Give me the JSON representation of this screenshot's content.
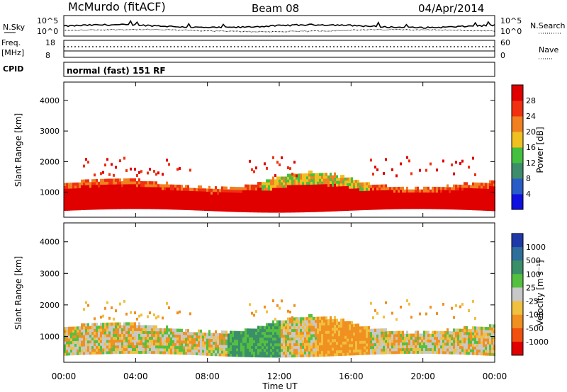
{
  "header": {
    "station": "McMurdo (fitACF)",
    "beam": "Beam 08",
    "date": "04/Apr/2014"
  },
  "noise_panel": {
    "left_label": "N.Sky",
    "right_label": "N.Search",
    "left_ticks": [
      "10^5",
      "10^0"
    ],
    "right_ticks": [
      "10^5",
      "10^0"
    ]
  },
  "freq_panel": {
    "left_label_1": "Freq.",
    "left_label_2": "[MHz]",
    "left_ticks": [
      "18",
      "8"
    ],
    "right_label": "Nave",
    "right_ticks": [
      "60",
      "0"
    ]
  },
  "cpid": {
    "label": "CPID",
    "text": "normal (fast) 151 RF"
  },
  "x_axis": {
    "title": "Time UT",
    "ticks": [
      "00:00",
      "04:00",
      "08:00",
      "12:00",
      "16:00",
      "20:00",
      "00:00"
    ]
  },
  "y_axis": {
    "title": "Slant Range [km]",
    "ticks": [
      "1000",
      "2000",
      "3000",
      "4000"
    ]
  },
  "power_scale": {
    "title": "Power [dB]",
    "ticks": [
      "4",
      "8",
      "12",
      "16",
      "20",
      "24",
      "28"
    ],
    "colors": [
      "#1010e0",
      "#2a5cc8",
      "#3d8c6c",
      "#44c040",
      "#f0c020",
      "#f08020",
      "#f03010",
      "#e00000"
    ]
  },
  "velocity_scale": {
    "title": "Velocity [m s⁻¹]",
    "ticks": [
      "1000",
      "500",
      "100",
      "25",
      "-25",
      "-100",
      "-500",
      "-1000"
    ],
    "colors": [
      "#1f3aa8",
      "#2e6e9a",
      "#3a8f68",
      "#55c040",
      "#c8c8c8",
      "#f0c040",
      "#f09020",
      "#f05010",
      "#e00000"
    ]
  },
  "chart_data": [
    {
      "type": "heatmap",
      "title": "Power",
      "xlabel": "Time UT",
      "ylabel": "Slant Range [km]",
      "x_range_hours": [
        0,
        24
      ],
      "ylim_km": [
        180,
        4600
      ],
      "colorbar": "Power [dB]",
      "colorbar_range_db": [
        0,
        32
      ],
      "main_band_km": [
        400,
        1300
      ],
      "dominant_value_db": 28
    },
    {
      "type": "heatmap",
      "title": "Velocity",
      "xlabel": "Time UT",
      "ylabel": "Slant Range [km]",
      "x_range_hours": [
        0,
        24
      ],
      "ylim_km": [
        180,
        4600
      ],
      "colorbar": "Velocity [m s-1]",
      "colorbar_levels": [
        1000,
        500,
        100,
        25,
        -25,
        -100,
        -500,
        -1000
      ],
      "main_band_km": [
        400,
        1300
      ]
    }
  ]
}
